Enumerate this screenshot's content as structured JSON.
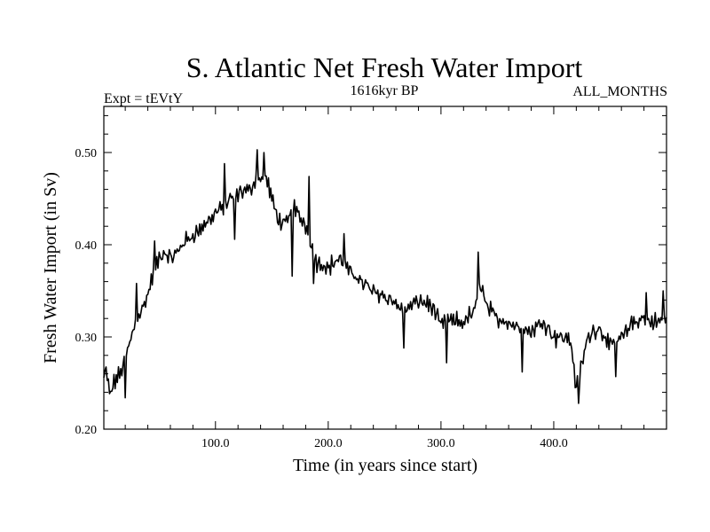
{
  "chart_data": {
    "type": "line",
    "title": "S. Atlantic Net Fresh Water Import",
    "subtitle_left": "Expt = tEVtY",
    "subtitle_center": "1616kyr BP",
    "subtitle_right": "ALL_MONTHS",
    "xlabel": "Time (in years since start)",
    "ylabel": "Fresh Water Import (in Sv)",
    "xlim": [
      1,
      500
    ],
    "ylim": [
      0.2,
      0.55
    ],
    "xticks": [
      100,
      200,
      300,
      400
    ],
    "xtick_labels": [
      "100.0",
      "200.0",
      "300.0",
      "400.0"
    ],
    "yticks": [
      0.2,
      0.3,
      0.4,
      0.5
    ],
    "ytick_labels": [
      "0.20",
      "0.30",
      "0.40",
      "0.50"
    ],
    "series": [
      {
        "name": "Fresh Water Import",
        "anchors_x": [
          1,
          3,
          6,
          10,
          15,
          20,
          25,
          30,
          35,
          40,
          45,
          50,
          55,
          60,
          65,
          70,
          80,
          90,
          100,
          110,
          120,
          130,
          135,
          140,
          145,
          150,
          155,
          160,
          165,
          170,
          180,
          185,
          190,
          200,
          210,
          220,
          230,
          240,
          250,
          260,
          270,
          280,
          290,
          300,
          310,
          320,
          330,
          335,
          340,
          350,
          360,
          370,
          380,
          390,
          400,
          410,
          415,
          420,
          425,
          430,
          440,
          450,
          460,
          470,
          480,
          490,
          500
        ],
        "anchors_y": [
          0.255,
          0.265,
          0.238,
          0.25,
          0.26,
          0.275,
          0.3,
          0.32,
          0.33,
          0.345,
          0.37,
          0.385,
          0.39,
          0.385,
          0.39,
          0.4,
          0.41,
          0.42,
          0.435,
          0.445,
          0.455,
          0.46,
          0.468,
          0.47,
          0.472,
          0.45,
          0.43,
          0.42,
          0.43,
          0.44,
          0.42,
          0.4,
          0.38,
          0.375,
          0.385,
          0.37,
          0.36,
          0.35,
          0.345,
          0.335,
          0.33,
          0.34,
          0.335,
          0.315,
          0.318,
          0.315,
          0.33,
          0.36,
          0.335,
          0.32,
          0.315,
          0.31,
          0.305,
          0.318,
          0.3,
          0.3,
          0.295,
          0.245,
          0.27,
          0.3,
          0.31,
          0.29,
          0.3,
          0.315,
          0.32,
          0.315,
          0.32
        ],
        "noise_amplitude": 0.013,
        "spikes": [
          {
            "x": 20,
            "y": 0.234
          },
          {
            "x": 30,
            "y": 0.358
          },
          {
            "x": 46,
            "y": 0.404
          },
          {
            "x": 108,
            "y": 0.488
          },
          {
            "x": 117,
            "y": 0.406
          },
          {
            "x": 137,
            "y": 0.503
          },
          {
            "x": 143,
            "y": 0.5
          },
          {
            "x": 168,
            "y": 0.366
          },
          {
            "x": 183,
            "y": 0.474
          },
          {
            "x": 187,
            "y": 0.358
          },
          {
            "x": 214,
            "y": 0.412
          },
          {
            "x": 267,
            "y": 0.288
          },
          {
            "x": 305,
            "y": 0.272
          },
          {
            "x": 333,
            "y": 0.392
          },
          {
            "x": 372,
            "y": 0.262
          },
          {
            "x": 422,
            "y": 0.228
          },
          {
            "x": 455,
            "y": 0.257
          },
          {
            "x": 482,
            "y": 0.348
          },
          {
            "x": 497,
            "y": 0.35
          }
        ]
      }
    ]
  }
}
